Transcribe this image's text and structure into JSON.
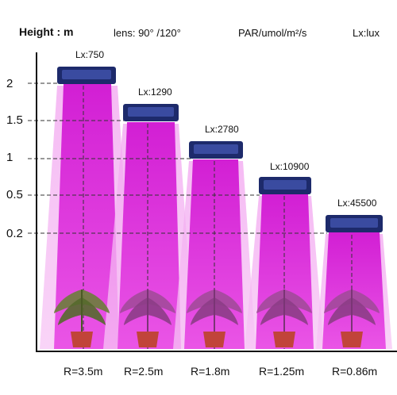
{
  "header": {
    "height_label": "Height : m",
    "lens_label": "lens:  90° /120°",
    "par_label": "PAR/umol/m²/s",
    "lux_label": "Lx:lux"
  },
  "y_ticks": [
    "2",
    "1.5",
    "1",
    "0.5",
    "0.2"
  ],
  "lights": [
    {
      "height": 2,
      "lux": "Lx:750",
      "radius": "R=3.5m"
    },
    {
      "height": 1.5,
      "lux": "Lx:1290",
      "radius": "R=2.5m"
    },
    {
      "height": 1,
      "lux": "Lx:2780",
      "radius": "R=1.8m"
    },
    {
      "height": 0.5,
      "lux": "Lx:10900",
      "radius": "R=1.25m"
    },
    {
      "height": 0.2,
      "lux": "Lx:45500",
      "radius": "R=0.86m"
    }
  ],
  "colors": {
    "beam": "#e22be0",
    "beam_light": "#f09cf0",
    "lamp": "#1d2a6b",
    "axis": "#111111",
    "guide": "#333333"
  },
  "icons": [
    "grow-light-panel-icon",
    "plant-icon"
  ]
}
